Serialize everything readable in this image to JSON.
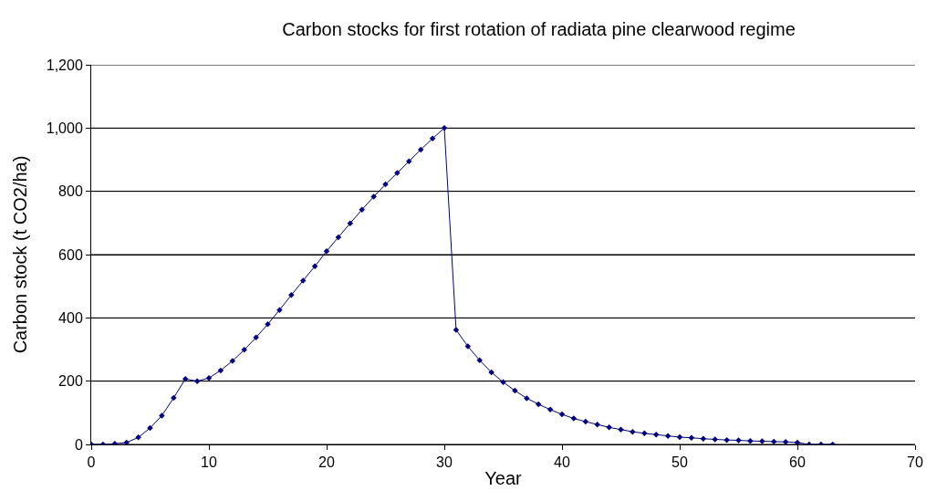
{
  "chart_data": {
    "type": "line",
    "title": "Carbon stocks for first rotation of radiata pine clearwood regime",
    "xlabel": "Year",
    "ylabel": "Carbon stock (t CO2/ha)",
    "x": [
      0,
      1,
      2,
      3,
      4,
      5,
      6,
      7,
      8,
      9,
      10,
      11,
      12,
      13,
      14,
      15,
      16,
      17,
      18,
      19,
      20,
      21,
      22,
      23,
      24,
      25,
      26,
      27,
      28,
      29,
      30,
      31,
      32,
      33,
      34,
      35,
      36,
      37,
      38,
      39,
      40,
      41,
      42,
      43,
      44,
      45,
      46,
      47,
      48,
      49,
      50,
      51,
      52,
      53,
      54,
      55,
      56,
      57,
      58,
      59,
      60,
      61,
      62,
      63
    ],
    "series": [
      {
        "color": "#000080",
        "values": [
          0,
          0,
          2,
          6,
          22,
          52,
          91,
          147,
          207,
          200,
          210,
          234,
          264,
          299,
          338,
          380,
          425,
          472,
          518,
          563,
          611,
          655,
          699,
          742,
          783,
          822,
          858,
          895,
          932,
          967,
          1000,
          362,
          310,
          266,
          228,
          197,
          170,
          146,
          127,
          110,
          95,
          82,
          72,
          63,
          54,
          47,
          40,
          35,
          31,
          27,
          23,
          21,
          18,
          16,
          14,
          13,
          11,
          10,
          9,
          8,
          6,
          0,
          0,
          0
        ]
      }
    ],
    "xlim": [
      0,
      70
    ],
    "xticks": [
      0,
      10,
      20,
      30,
      40,
      50,
      60,
      70
    ],
    "ylim": [
      0,
      1200
    ],
    "yticks": [
      {
        "value": 0,
        "label": "0"
      },
      {
        "value": 200,
        "label": "200"
      },
      {
        "value": 400,
        "label": "400"
      },
      {
        "value": 600,
        "label": "600"
      },
      {
        "value": 800,
        "label": "800"
      },
      {
        "value": 1000,
        "label": "1,000"
      },
      {
        "value": 1200,
        "label": "1,200"
      }
    ],
    "grid": "y",
    "marker": "diamond",
    "line_style": "solid"
  }
}
